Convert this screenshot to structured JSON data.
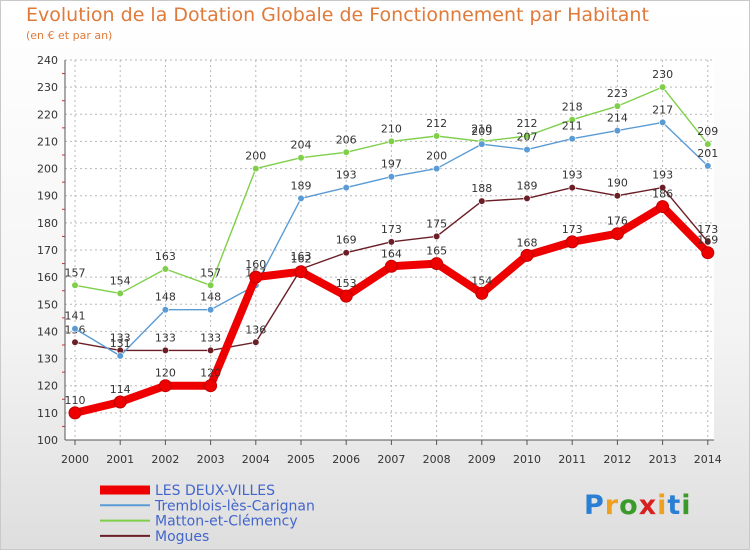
{
  "title": "Evolution de la Dotation Globale de Fonctionnement par Habitant",
  "subtitle": "(en € et par an)",
  "logo": [
    "P",
    "r",
    "o",
    "x",
    "i",
    "t",
    "i"
  ],
  "logo_colors": [
    "#2a7fd4",
    "#f0a020",
    "#3a9a2a",
    "#d92020",
    "#f0a020",
    "#2a7fd4",
    "#3a9a2a"
  ],
  "chart_data": {
    "type": "line",
    "title": "Evolution de la Dotation Globale de Fonctionnement par Habitant",
    "subtitle": "(en € et par an)",
    "xlabel": "",
    "ylabel": "",
    "ylim": [
      100,
      240
    ],
    "yticks": [
      100,
      110,
      120,
      130,
      140,
      150,
      160,
      170,
      180,
      190,
      200,
      210,
      220,
      230,
      240
    ],
    "categories": [
      "2000",
      "2001",
      "2002",
      "2003",
      "2004",
      "2005",
      "2006",
      "2007",
      "2008",
      "2009",
      "2010",
      "2011",
      "2012",
      "2013",
      "2014"
    ],
    "grid": true,
    "legend_position": "bottom-left",
    "series": [
      {
        "name": "Mogues",
        "color": "#6b1e26",
        "values": [
          136,
          133,
          133,
          133,
          136,
          163,
          169,
          173,
          175,
          188,
          189,
          193,
          190,
          193,
          173
        ]
      },
      {
        "name": "Matton-et-Clémency",
        "color": "#7fcf4a",
        "values": [
          157,
          154,
          163,
          157,
          200,
          204,
          206,
          210,
          212,
          210,
          212,
          218,
          223,
          230,
          209
        ]
      },
      {
        "name": "Tremblois-lès-Carignan",
        "color": "#5b9bd5",
        "values": [
          141,
          131,
          148,
          148,
          157,
          189,
          193,
          197,
          200,
          209,
          207,
          211,
          214,
          217,
          201
        ]
      },
      {
        "name": "LES DEUX-VILLES",
        "color": "#ee0000",
        "values": [
          110,
          114,
          120,
          120,
          160,
          162,
          153,
          164,
          165,
          154,
          168,
          173,
          176,
          186,
          169
        ]
      }
    ],
    "legend_order": [
      "LES DEUX-VILLES",
      "Tremblois-lès-Carignan",
      "Matton-et-Clémency",
      "Mogues"
    ]
  }
}
